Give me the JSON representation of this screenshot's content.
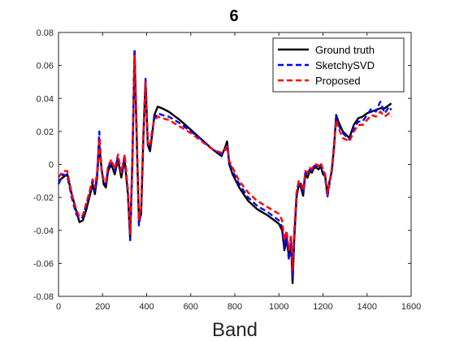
{
  "chart_data": {
    "type": "line",
    "title": "6",
    "xlabel": "Band",
    "ylabel": "",
    "xlim": [
      0,
      1600
    ],
    "ylim": [
      -0.08,
      0.08
    ],
    "x_ticks": [
      "0",
      "200",
      "400",
      "600",
      "800",
      "1000",
      "1200",
      "1400",
      "1600"
    ],
    "y_ticks": [
      "-0.08",
      "-0.06",
      "-0.04",
      "-0.02",
      "0",
      "0.02",
      "0.04",
      "0.06",
      "0.08"
    ],
    "grid": false,
    "legend_position": "top-right",
    "series": [
      {
        "name": "Ground truth",
        "color": "#000000",
        "dash": "solid",
        "x": [
          0,
          20,
          40,
          60,
          80,
          95,
          110,
          125,
          140,
          155,
          165,
          175,
          185,
          195,
          205,
          215,
          225,
          240,
          255,
          270,
          285,
          300,
          315,
          325,
          335,
          345,
          355,
          365,
          375,
          385,
          395,
          405,
          415,
          425,
          435,
          450,
          470,
          500,
          550,
          600,
          650,
          700,
          740,
          755,
          765,
          775,
          790,
          820,
          860,
          900,
          950,
          1000,
          1015,
          1025,
          1035,
          1045,
          1055,
          1062,
          1070,
          1080,
          1090,
          1100,
          1110,
          1120,
          1130,
          1140,
          1150,
          1160,
          1170,
          1180,
          1190,
          1200,
          1210,
          1220,
          1230,
          1240,
          1250,
          1260,
          1270,
          1290,
          1320,
          1340,
          1360,
          1380,
          1400,
          1420,
          1440,
          1460,
          1480,
          1500,
          1510
        ],
        "y": [
          -0.01,
          -0.008,
          -0.006,
          -0.018,
          -0.028,
          -0.035,
          -0.034,
          -0.028,
          -0.02,
          -0.012,
          -0.018,
          -0.008,
          0.012,
          -0.002,
          -0.012,
          -0.014,
          -0.004,
          0,
          -0.006,
          0.003,
          -0.008,
          0.003,
          -0.018,
          -0.045,
          0,
          0.068,
          0.015,
          -0.035,
          -0.03,
          0.015,
          0.051,
          0.012,
          0.008,
          0.018,
          0.03,
          0.035,
          0.034,
          0.032,
          0.027,
          0.021,
          0.015,
          0.009,
          0.005,
          0.01,
          0.014,
          0,
          -0.006,
          -0.014,
          -0.022,
          -0.027,
          -0.031,
          -0.036,
          -0.04,
          -0.052,
          -0.046,
          -0.055,
          -0.048,
          -0.072,
          -0.045,
          -0.02,
          -0.012,
          -0.014,
          -0.019,
          -0.006,
          -0.008,
          -0.004,
          -0.005,
          -0.002,
          -0.002,
          -0.003,
          -0.001,
          -0.006,
          -0.007,
          -0.018,
          -0.01,
          -0.004,
          0.01,
          0.03,
          0.026,
          0.02,
          0.016,
          0.024,
          0.028,
          0.029,
          0.031,
          0.032,
          0.033,
          0.034,
          0.034,
          0.036,
          0.037
        ]
      },
      {
        "name": "SketchySVD",
        "color": "#0000ff",
        "dash": "dashed",
        "x": [
          0,
          20,
          40,
          60,
          80,
          95,
          110,
          125,
          140,
          155,
          165,
          175,
          185,
          195,
          205,
          215,
          225,
          240,
          255,
          270,
          285,
          300,
          315,
          325,
          335,
          345,
          355,
          365,
          375,
          385,
          395,
          405,
          415,
          425,
          435,
          450,
          470,
          500,
          550,
          600,
          650,
          700,
          740,
          755,
          765,
          775,
          790,
          820,
          860,
          900,
          950,
          1000,
          1015,
          1025,
          1035,
          1045,
          1055,
          1062,
          1070,
          1080,
          1090,
          1100,
          1110,
          1120,
          1130,
          1140,
          1150,
          1160,
          1170,
          1180,
          1190,
          1200,
          1210,
          1220,
          1230,
          1240,
          1250,
          1260,
          1270,
          1290,
          1320,
          1340,
          1360,
          1380,
          1400,
          1420,
          1440,
          1460,
          1480,
          1500,
          1510
        ],
        "y": [
          -0.012,
          -0.006,
          -0.007,
          -0.02,
          -0.03,
          -0.033,
          -0.032,
          -0.025,
          -0.018,
          -0.01,
          -0.016,
          -0.006,
          0.02,
          -0.004,
          -0.01,
          -0.012,
          -0.002,
          0.002,
          -0.004,
          0.005,
          -0.006,
          0.005,
          -0.016,
          -0.046,
          0.004,
          0.07,
          0.02,
          -0.037,
          -0.028,
          0.018,
          0.052,
          0.014,
          0.01,
          0.02,
          0.028,
          0.031,
          0.03,
          0.029,
          0.025,
          0.02,
          0.015,
          0.009,
          0.006,
          0.008,
          0.012,
          0.001,
          -0.004,
          -0.012,
          -0.02,
          -0.025,
          -0.029,
          -0.034,
          -0.038,
          -0.05,
          -0.043,
          -0.058,
          -0.046,
          -0.068,
          -0.042,
          -0.018,
          -0.01,
          -0.012,
          -0.017,
          -0.005,
          -0.006,
          -0.003,
          -0.004,
          -0.001,
          -0.001,
          -0.002,
          0,
          -0.004,
          -0.008,
          -0.02,
          -0.012,
          -0.003,
          0.012,
          0.029,
          0.024,
          0.019,
          0.015,
          0.022,
          0.026,
          0.026,
          0.03,
          0.034,
          0.032,
          0.038,
          0.031,
          0.035,
          0.033
        ]
      },
      {
        "name": "Proposed",
        "color": "#ff0000",
        "dash": "dashed",
        "x": [
          0,
          20,
          40,
          60,
          80,
          95,
          110,
          125,
          140,
          155,
          165,
          175,
          185,
          195,
          205,
          215,
          225,
          240,
          255,
          270,
          285,
          300,
          315,
          325,
          335,
          345,
          355,
          365,
          375,
          385,
          395,
          405,
          415,
          425,
          435,
          450,
          470,
          500,
          550,
          600,
          650,
          700,
          740,
          755,
          765,
          775,
          790,
          820,
          860,
          900,
          950,
          1000,
          1015,
          1025,
          1035,
          1045,
          1055,
          1062,
          1070,
          1080,
          1090,
          1100,
          1110,
          1120,
          1130,
          1140,
          1150,
          1160,
          1170,
          1180,
          1190,
          1200,
          1210,
          1220,
          1230,
          1240,
          1250,
          1260,
          1270,
          1290,
          1320,
          1340,
          1360,
          1380,
          1400,
          1420,
          1440,
          1460,
          1480,
          1500,
          1510
        ],
        "y": [
          -0.008,
          -0.004,
          -0.004,
          -0.018,
          -0.027,
          -0.032,
          -0.031,
          -0.024,
          -0.017,
          -0.009,
          -0.014,
          -0.005,
          0.016,
          -0.003,
          -0.009,
          -0.011,
          -0.001,
          0.003,
          -0.003,
          0.006,
          -0.005,
          0.006,
          -0.015,
          -0.042,
          0.005,
          0.066,
          0.018,
          -0.034,
          -0.026,
          0.019,
          0.05,
          0.013,
          0.011,
          0.021,
          0.027,
          0.029,
          0.028,
          0.027,
          0.023,
          0.019,
          0.014,
          0.009,
          0.007,
          0.009,
          0.011,
          0.002,
          -0.002,
          -0.01,
          -0.017,
          -0.022,
          -0.026,
          -0.03,
          -0.034,
          -0.046,
          -0.04,
          -0.052,
          -0.043,
          -0.064,
          -0.04,
          -0.017,
          -0.01,
          -0.011,
          -0.016,
          -0.004,
          -0.005,
          -0.002,
          -0.003,
          0,
          0,
          -0.001,
          0.001,
          -0.003,
          -0.006,
          -0.018,
          -0.011,
          -0.002,
          0.011,
          0.027,
          0.022,
          0.016,
          0.014,
          0.02,
          0.024,
          0.024,
          0.027,
          0.03,
          0.029,
          0.032,
          0.029,
          0.031,
          0.029
        ]
      }
    ]
  }
}
